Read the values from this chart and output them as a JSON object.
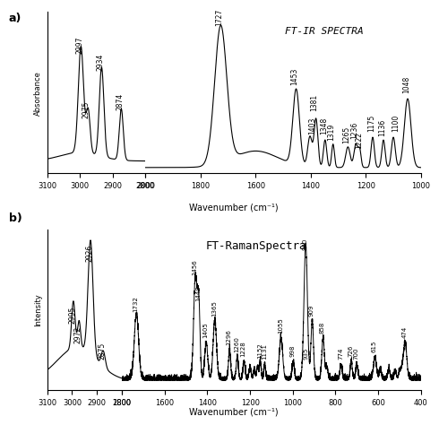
{
  "title_ir": "FT-IR SPECTRA",
  "title_raman": "FT-RamanSpectra",
  "xlabel_ir": "Wavenumber (cm⁻¹)",
  "xlabel_raman": "Wavenumber (cm⁻¹)",
  "ylabel_ir": "Absorbance",
  "ylabel_raman": "Intensity",
  "label_a": "a)",
  "label_b": "b)",
  "ir_peaks_left": [
    {
      "wn": 2997,
      "label": "2997"
    },
    {
      "wn": 2975,
      "label": "2975"
    },
    {
      "wn": 2934,
      "label": "2934"
    },
    {
      "wn": 2874,
      "label": "2874"
    }
  ],
  "ir_peaks_right": [
    {
      "wn": 1727,
      "label": "1727"
    },
    {
      "wn": 1453,
      "label": "1453"
    },
    {
      "wn": 1381,
      "label": "1381"
    },
    {
      "wn": 1403,
      "label": "1403"
    },
    {
      "wn": 1348,
      "label": "1348"
    },
    {
      "wn": 1319,
      "label": "1319"
    },
    {
      "wn": 1265,
      "label": "1265"
    },
    {
      "wn": 1236,
      "label": "1236"
    },
    {
      "wn": 1222,
      "label": "1222"
    },
    {
      "wn": 1175,
      "label": "1175"
    },
    {
      "wn": 1136,
      "label": "1136"
    },
    {
      "wn": 1100,
      "label": "1100"
    },
    {
      "wn": 1048,
      "label": "1048"
    }
  ],
  "raman_peaks_left": [
    {
      "wn": 2926,
      "label": "2926"
    },
    {
      "wn": 2995,
      "label": "2995"
    },
    {
      "wn": 2972,
      "label": "2972"
    },
    {
      "wn": 2875,
      "label": "2875"
    }
  ],
  "raman_peaks_right": [
    {
      "wn": 1732,
      "label": "1732"
    },
    {
      "wn": 1456,
      "label": "1456"
    },
    {
      "wn": 1440,
      "label": "1440"
    },
    {
      "wn": 1405,
      "label": "1405"
    },
    {
      "wn": 1365,
      "label": "1365"
    },
    {
      "wn": 1296,
      "label": "1296"
    },
    {
      "wn": 1260,
      "label": "1260"
    },
    {
      "wn": 1228,
      "label": "1228"
    },
    {
      "wn": 1152,
      "label": "1152"
    },
    {
      "wn": 1131,
      "label": "1131"
    },
    {
      "wn": 1055,
      "label": "1055"
    },
    {
      "wn": 940,
      "label": "940"
    },
    {
      "wn": 998,
      "label": "998"
    },
    {
      "wn": 935,
      "label": "935"
    },
    {
      "wn": 909,
      "label": "909"
    },
    {
      "wn": 858,
      "label": "858"
    },
    {
      "wn": 615,
      "label": "615"
    },
    {
      "wn": 774,
      "label": "774"
    },
    {
      "wn": 726,
      "label": "726"
    },
    {
      "wn": 700,
      "label": "700"
    },
    {
      "wn": 474,
      "label": "474"
    }
  ]
}
